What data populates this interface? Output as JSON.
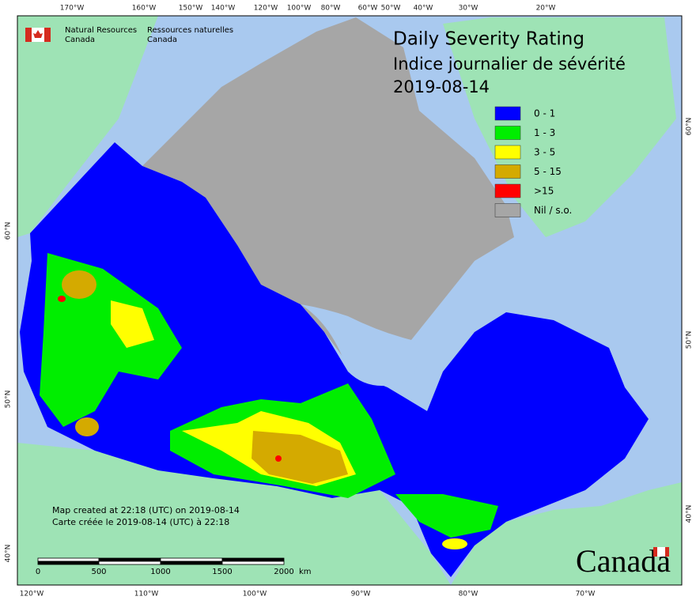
{
  "header": {
    "agency_en": [
      "Natural Resources",
      "Canada"
    ],
    "agency_fr": [
      "Ressources naturelles",
      "Canada"
    ]
  },
  "title": [
    "Daily Severity Rating",
    "Indice journalier de sévérité",
    "2019-08-14"
  ],
  "legend": [
    {
      "label": "0 - 1",
      "color": "#0000ff"
    },
    {
      "label": "1 - 3",
      "color": "#00ee00"
    },
    {
      "label": "3 - 5",
      "color": "#ffff00"
    },
    {
      "label": "5 - 15",
      "color": "#d4aa00"
    },
    {
      "label": ">15",
      "color": "#ff0000"
    },
    {
      "label": "Nil / s.o.",
      "color": "#a6a6a6"
    }
  ],
  "graticule": {
    "top": [
      "170°W",
      "160°W",
      "150°W",
      "140°W",
      "120°W",
      "100°W",
      "80°W",
      "60°W",
      "50°W",
      "40°W",
      "30°W",
      "20°W"
    ],
    "bottom": [
      "120°W",
      "110°W",
      "100°W",
      "90°W",
      "80°W",
      "70°W"
    ],
    "left": [
      "60°N",
      "50°N",
      "40°N"
    ],
    "right": [
      "60°N",
      "50°N",
      "40°N"
    ]
  },
  "footer": [
    "Map created at 22:18 (UTC) on 2019-08-14",
    "Carte créée le 2019-08-14 (UTC) à 22:18"
  ],
  "scale_bar": {
    "labels": [
      "0",
      "500",
      "1000",
      "1500",
      "2000"
    ],
    "unit": "km"
  },
  "wordmark": "Canada"
}
